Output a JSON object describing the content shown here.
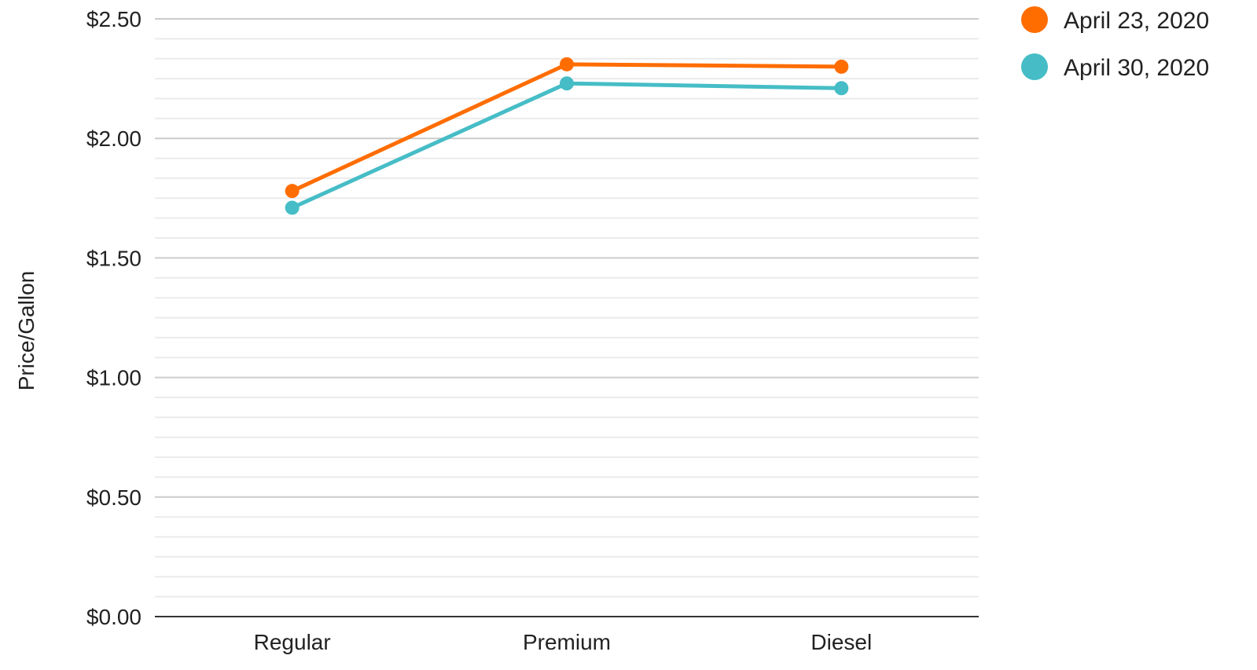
{
  "chart_data": {
    "type": "line",
    "categories": [
      "Regular",
      "Premium",
      "Diesel"
    ],
    "series": [
      {
        "name": "April 23, 2020",
        "color": "#ff6d01",
        "values": [
          1.78,
          2.31,
          2.3
        ]
      },
      {
        "name": "April 30, 2020",
        "color": "#46bdc6",
        "values": [
          1.71,
          2.23,
          2.21
        ]
      }
    ],
    "title": "",
    "xlabel": "",
    "ylabel": "Price/Gallon",
    "ylim": [
      0,
      2.5
    ],
    "major_ticks": [
      0,
      0.5,
      1.0,
      1.5,
      2.0,
      2.5
    ],
    "tick_labels": [
      "$0.00",
      "$0.50",
      "$1.00",
      "$1.50",
      "$2.00",
      "$2.50"
    ],
    "minor_ticks_per_major": 6,
    "grid": true,
    "legend_position": "top-right",
    "colors": {
      "gridline": "#cccccc",
      "minor_gridline": "#ebebeb",
      "baseline": "#333333"
    }
  }
}
